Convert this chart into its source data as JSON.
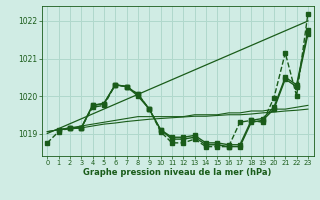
{
  "xlabel": "Graphe pression niveau de la mer (hPa)",
  "bg_color": "#d0ece4",
  "grid_color": "#b0d8cc",
  "line_color": "#1a5c1a",
  "text_color": "#1a5c1a",
  "ylim": [
    1018.4,
    1022.4
  ],
  "xlim": [
    -0.5,
    23.5
  ],
  "yticks": [
    1019,
    1020,
    1021,
    1022
  ],
  "xticks": [
    0,
    1,
    2,
    3,
    4,
    5,
    6,
    7,
    8,
    9,
    10,
    11,
    12,
    13,
    14,
    15,
    16,
    17,
    18,
    19,
    20,
    21,
    22,
    23
  ],
  "series": [
    {
      "x": [
        0,
        23
      ],
      "y": [
        1019.0,
        1022.0
      ],
      "marker": "None",
      "markersize": 0,
      "linewidth": 0.9,
      "dashed": false
    },
    {
      "x": [
        0,
        1,
        2,
        3,
        4,
        5,
        6,
        7,
        8,
        9,
        10,
        11,
        12,
        13,
        14,
        15,
        16,
        17,
        18,
        19,
        20,
        21,
        22,
        23
      ],
      "y": [
        1018.75,
        1019.05,
        1019.15,
        1019.15,
        1019.7,
        1019.75,
        1020.3,
        1020.25,
        1020.05,
        1019.65,
        1019.05,
        1018.75,
        1018.75,
        1018.85,
        1018.65,
        1018.65,
        1018.65,
        1019.3,
        1019.35,
        1019.3,
        1019.95,
        1021.15,
        1020.0,
        1022.2
      ],
      "marker": "s",
      "markersize": 2.5,
      "linewidth": 1.0,
      "dashed": true
    },
    {
      "x": [
        1,
        2,
        3,
        4,
        5,
        6,
        7,
        8,
        9,
        10,
        11,
        12,
        13,
        14,
        15,
        16,
        17,
        18,
        19,
        20,
        21,
        22,
        23
      ],
      "y": [
        1019.1,
        1019.15,
        1019.15,
        1019.75,
        1019.8,
        1020.3,
        1020.25,
        1020.0,
        1019.65,
        1019.1,
        1018.85,
        1018.85,
        1018.9,
        1018.7,
        1018.7,
        1018.65,
        1018.65,
        1019.3,
        1019.35,
        1019.65,
        1020.45,
        1020.25,
        1021.65
      ],
      "marker": "s",
      "markersize": 2.5,
      "linewidth": 1.0,
      "dashed": false
    },
    {
      "x": [
        2,
        3,
        4,
        5,
        6,
        7,
        8,
        9,
        10,
        11,
        12,
        13,
        14,
        15,
        16,
        17,
        18,
        19,
        20,
        21,
        22,
        23
      ],
      "y": [
        1019.15,
        1019.15,
        1019.75,
        1019.8,
        1020.3,
        1020.25,
        1020.05,
        1019.65,
        1019.1,
        1018.9,
        1018.9,
        1018.95,
        1018.75,
        1018.75,
        1018.7,
        1018.7,
        1019.35,
        1019.4,
        1019.7,
        1020.5,
        1020.3,
        1021.75
      ],
      "marker": "s",
      "markersize": 2.5,
      "linewidth": 1.0,
      "dashed": false
    },
    {
      "x": [
        0,
        1,
        2,
        3,
        4,
        5,
        6,
        7,
        8,
        9,
        10,
        11,
        12,
        13,
        14,
        15,
        16,
        17,
        18,
        19,
        20,
        21,
        22,
        23
      ],
      "y": [
        1019.05,
        1019.1,
        1019.15,
        1019.2,
        1019.25,
        1019.3,
        1019.35,
        1019.4,
        1019.45,
        1019.45,
        1019.45,
        1019.45,
        1019.45,
        1019.5,
        1019.5,
        1019.5,
        1019.55,
        1019.55,
        1019.6,
        1019.6,
        1019.65,
        1019.65,
        1019.7,
        1019.75
      ],
      "marker": "None",
      "markersize": 0,
      "linewidth": 0.8,
      "dashed": false
    },
    {
      "x": [
        0,
        1,
        2,
        3,
        4,
        5,
        6,
        7,
        8,
        9,
        10,
        11,
        12,
        13,
        14,
        15,
        16,
        17,
        18,
        19,
        20,
        21,
        22,
        23
      ],
      "y": [
        1019.05,
        1019.1,
        1019.12,
        1019.15,
        1019.2,
        1019.25,
        1019.28,
        1019.32,
        1019.35,
        1019.38,
        1019.4,
        1019.42,
        1019.44,
        1019.46,
        1019.46,
        1019.48,
        1019.5,
        1019.5,
        1019.52,
        1019.55,
        1019.57,
        1019.6,
        1019.62,
        1019.65
      ],
      "marker": "None",
      "markersize": 0,
      "linewidth": 0.8,
      "dashed": false
    }
  ]
}
